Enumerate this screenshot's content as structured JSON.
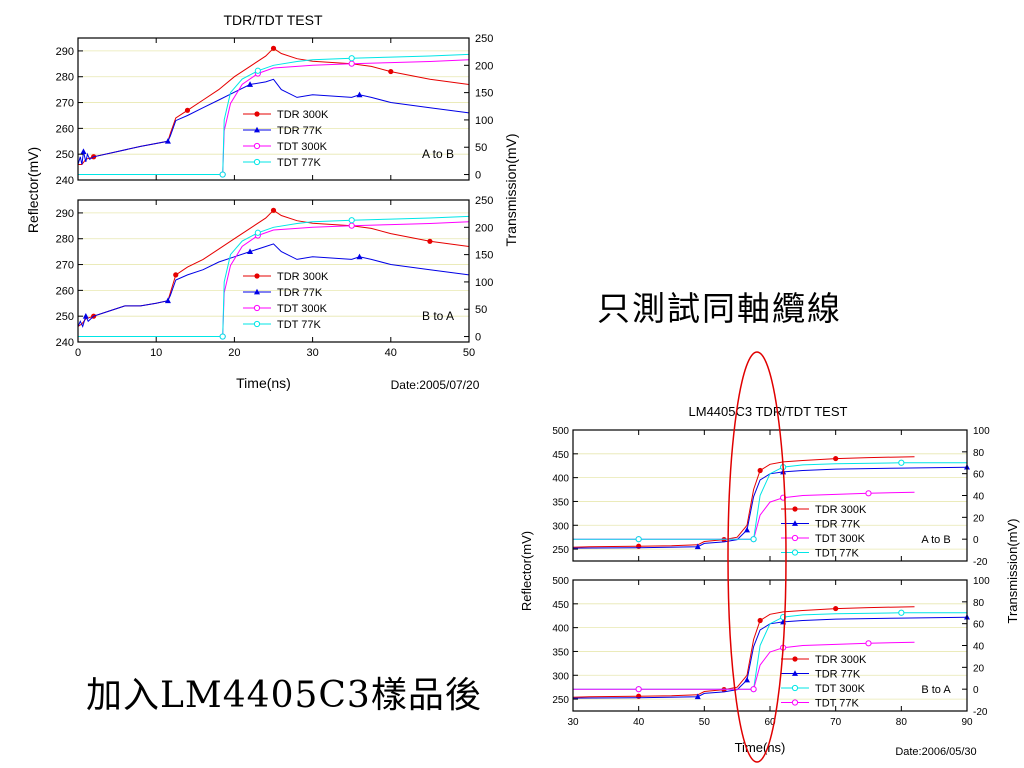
{
  "notes": {
    "coax_only": "只測試同軸纜線",
    "with_sample": "加入LM4405C3樣品後"
  },
  "chart_data": [
    {
      "id": "chart1",
      "type": "line",
      "title": "TDR/TDT TEST",
      "xlabel": "Time(ns)",
      "ylabel_left": "Reflector(mV)",
      "ylabel_right": "Transmission(mV)",
      "date": "Date:2005/07/20",
      "xlim": [
        0,
        50
      ],
      "xticks": [
        0,
        10,
        20,
        30,
        40,
        50
      ],
      "ylim_left": [
        240,
        295
      ],
      "yticks_left": [
        240,
        250,
        260,
        270,
        280,
        290
      ],
      "ylim_right": [
        -10,
        250
      ],
      "yticks_right": [
        0,
        50,
        100,
        150,
        200,
        250
      ],
      "grid": "horizontal",
      "panels": [
        {
          "label": "A to B",
          "legend": [
            "TDR 300K",
            "TDR 77K",
            "TDT 300K",
            "TDT 77K"
          ],
          "series": [
            {
              "name": "TDR 300K",
              "color": "#e60000",
              "marker": "circle-filled",
              "axis": "left",
              "x": [
                0,
                0.5,
                1,
                2,
                5,
                8,
                11.5,
                11.8,
                12.5,
                14,
                16,
                18,
                20,
                22,
                24,
                25,
                26,
                28,
                30,
                35,
                37.5,
                40,
                45,
                50
              ],
              "y": [
                246,
                246,
                248,
                249,
                251,
                253,
                255,
                258,
                264,
                267,
                271,
                275,
                280,
                284,
                288,
                291,
                289,
                287,
                286,
                285,
                284,
                282,
                279,
                277
              ]
            },
            {
              "name": "TDR 77K",
              "color": "#0000e6",
              "marker": "triangle-filled",
              "axis": "left",
              "x": [
                0,
                0.3,
                0.5,
                0.7,
                1,
                1.2,
                1.5,
                2,
                5,
                8,
                11.5,
                11.8,
                12.5,
                14,
                16,
                18,
                20,
                22,
                24,
                25,
                26,
                28,
                30,
                35,
                36,
                37.5,
                40,
                45,
                50
              ],
              "y": [
                246,
                249,
                246,
                251,
                247,
                250,
                248,
                249,
                251,
                253,
                255,
                257,
                263,
                265,
                268,
                271,
                274,
                277,
                278,
                279,
                275,
                272,
                273,
                272,
                273,
                272,
                270,
                268,
                266
              ]
            },
            {
              "name": "TDT 300K",
              "color": "#ff00ff",
              "marker": "circle-open",
              "axis": "right",
              "x": [
                0,
                12.5,
                18.5,
                18.7,
                19.5,
                21,
                23,
                25,
                28,
                30,
                35,
                40,
                45,
                50
              ],
              "y": [
                0,
                0,
                0,
                80,
                130,
                165,
                185,
                195,
                198,
                200,
                203,
                205,
                207,
                210
              ]
            },
            {
              "name": "TDT 77K",
              "color": "#00e6e6",
              "marker": "circle-open",
              "axis": "right",
              "x": [
                0,
                12.5,
                18.5,
                18.7,
                19.5,
                21,
                23,
                25,
                28,
                30,
                35,
                40,
                45,
                50
              ],
              "y": [
                0,
                0,
                0,
                100,
                150,
                175,
                190,
                200,
                207,
                210,
                213,
                215,
                217,
                220
              ]
            }
          ]
        },
        {
          "label": "B to A",
          "legend": [
            "TDR 300K",
            "TDR 77K",
            "TDT 300K",
            "TDT 77K"
          ],
          "series": [
            {
              "name": "TDR 300K",
              "color": "#e60000",
              "marker": "circle-filled",
              "axis": "left",
              "x": [
                0,
                0.5,
                1,
                2,
                4,
                6,
                8,
                10,
                11.5,
                11.8,
                12.5,
                14,
                16,
                18,
                20,
                22,
                24,
                25,
                26,
                28,
                30,
                35,
                37.5,
                40,
                45,
                50
              ],
              "y": [
                246,
                247,
                249,
                250,
                252,
                254,
                254,
                255,
                256,
                259,
                266,
                269,
                272,
                276,
                280,
                284,
                288,
                291,
                289,
                287,
                286,
                285,
                284,
                282,
                279,
                277
              ]
            },
            {
              "name": "TDR 77K",
              "color": "#0000e6",
              "marker": "triangle-filled",
              "axis": "left",
              "x": [
                0,
                0.3,
                0.6,
                1,
                1.3,
                2,
                4,
                6,
                8,
                10,
                11.5,
                11.8,
                12.5,
                14,
                16,
                18,
                20,
                22,
                24,
                25,
                26,
                28,
                30,
                35,
                36,
                37.5,
                40,
                45,
                50
              ],
              "y": [
                246,
                248,
                246,
                250,
                248,
                250,
                252,
                254,
                254,
                255,
                256,
                258,
                264,
                266,
                268,
                271,
                273,
                275,
                277,
                278,
                275,
                272,
                273,
                272,
                273,
                272,
                270,
                268,
                266
              ]
            },
            {
              "name": "TDT 300K",
              "color": "#ff00ff",
              "marker": "circle-open",
              "axis": "right",
              "x": [
                0,
                12.5,
                18.5,
                18.7,
                19.5,
                21,
                23,
                25,
                28,
                30,
                35,
                40,
                45,
                50
              ],
              "y": [
                0,
                0,
                0,
                80,
                130,
                165,
                185,
                195,
                198,
                200,
                203,
                205,
                207,
                210
              ]
            },
            {
              "name": "TDT 77K",
              "color": "#00e6e6",
              "marker": "circle-open",
              "axis": "right",
              "x": [
                0,
                12.5,
                18.5,
                18.7,
                19.5,
                21,
                23,
                25,
                28,
                30,
                35,
                40,
                45,
                50
              ],
              "y": [
                0,
                0,
                0,
                100,
                150,
                175,
                190,
                200,
                207,
                210,
                213,
                215,
                217,
                220
              ]
            }
          ]
        }
      ]
    },
    {
      "id": "chart2",
      "type": "line",
      "title": "LM4405C3 TDR/TDT TEST",
      "xlabel": "Time(ns)",
      "ylabel_left": "Reflector(mV)",
      "ylabel_right": "Transmission(mV)",
      "date": "Date:2006/05/30",
      "xlim": [
        30,
        90
      ],
      "xticks": [
        30,
        40,
        50,
        60,
        70,
        80,
        90
      ],
      "ylim_left": [
        225,
        500
      ],
      "yticks_left": [
        250,
        300,
        350,
        400,
        450,
        500
      ],
      "ylim_right": [
        -20,
        100
      ],
      "yticks_right": [
        -20,
        0,
        20,
        40,
        60,
        80,
        100
      ],
      "grid": "horizontal",
      "panels": [
        {
          "label": "A to B",
          "legend": [
            "TDR 300K",
            "TDR 77K",
            "TDT 300K",
            "TDT 77K"
          ],
          "series": [
            {
              "name": "TDR 300K",
              "color": "#e60000",
              "marker": "circle-filled",
              "axis": "left",
              "x": [
                30,
                32.5,
                40,
                45,
                49,
                50,
                53,
                55,
                56.5,
                57.5,
                58.5,
                60,
                62,
                65,
                70,
                75,
                82
              ],
              "y": [
                254,
                255,
                256,
                257,
                259,
                266,
                270,
                275,
                300,
                375,
                415,
                428,
                433,
                436,
                440,
                442,
                444
              ]
            },
            {
              "name": "TDR 77K",
              "color": "#0000e6",
              "marker": "triangle-filled",
              "axis": "left",
              "x": [
                30,
                40,
                49,
                50,
                53,
                55,
                56.5,
                57.5,
                58.5,
                60,
                62,
                65,
                70,
                80,
                90
              ],
              "y": [
                252,
                253,
                255,
                262,
                265,
                270,
                290,
                360,
                395,
                408,
                412,
                415,
                418,
                420,
                422
              ]
            },
            {
              "name": "TDT 300K",
              "color": "#ff00ff",
              "marker": "circle-open",
              "axis": "right",
              "x": [
                30,
                40,
                50,
                56,
                57.5,
                58.5,
                60,
                62,
                65,
                70,
                75,
                82
              ],
              "y": [
                0,
                0,
                0,
                0,
                0,
                22,
                34,
                38,
                40,
                41,
                42,
                43
              ]
            },
            {
              "name": "TDT 77K",
              "color": "#00e6e6",
              "marker": "circle-open",
              "axis": "right",
              "x": [
                30,
                40,
                50,
                56,
                57.5,
                58.5,
                60,
                62,
                65,
                70,
                80,
                90
              ],
              "y": [
                0,
                0,
                0,
                0,
                0,
                40,
                60,
                66,
                68,
                69,
                70,
                70
              ]
            }
          ]
        },
        {
          "label": "B to A",
          "legend": [
            "TDR 300K",
            "TDR 77K",
            "TDT 300K",
            "TDT 77K"
          ],
          "series": [
            {
              "name": "TDR 300K",
              "color": "#e60000",
              "marker": "circle-filled",
              "axis": "left",
              "x": [
                30,
                32.5,
                40,
                45,
                49,
                50,
                53,
                55,
                56.5,
                57.5,
                58.5,
                60,
                62,
                65,
                70,
                75,
                82
              ],
              "y": [
                254,
                255,
                256,
                257,
                259,
                266,
                270,
                275,
                300,
                375,
                415,
                428,
                433,
                436,
                440,
                442,
                444
              ]
            },
            {
              "name": "TDR 77K",
              "color": "#0000e6",
              "marker": "triangle-filled",
              "axis": "left",
              "x": [
                30,
                40,
                49,
                50,
                53,
                55,
                56.5,
                57.5,
                58.5,
                60,
                62,
                65,
                70,
                80,
                90
              ],
              "y": [
                252,
                253,
                255,
                262,
                265,
                270,
                290,
                360,
                395,
                408,
                412,
                415,
                418,
                420,
                422
              ]
            },
            {
              "name": "TDT 300K",
              "color": "#00e6e6",
              "marker": "circle-open",
              "axis": "right",
              "x": [
                30,
                40,
                50,
                56,
                57.5,
                58.5,
                60,
                62,
                65,
                70,
                80,
                90
              ],
              "y": [
                0,
                0,
                0,
                0,
                0,
                40,
                60,
                66,
                68,
                69,
                70,
                70
              ]
            },
            {
              "name": "TDT 77K",
              "color": "#ff00ff",
              "marker": "circle-open",
              "axis": "right",
              "x": [
                30,
                40,
                50,
                56,
                57.5,
                58.5,
                60,
                62,
                65,
                70,
                75,
                82
              ],
              "y": [
                0,
                0,
                0,
                0,
                0,
                22,
                34,
                38,
                40,
                41,
                42,
                43
              ]
            }
          ]
        }
      ]
    }
  ]
}
